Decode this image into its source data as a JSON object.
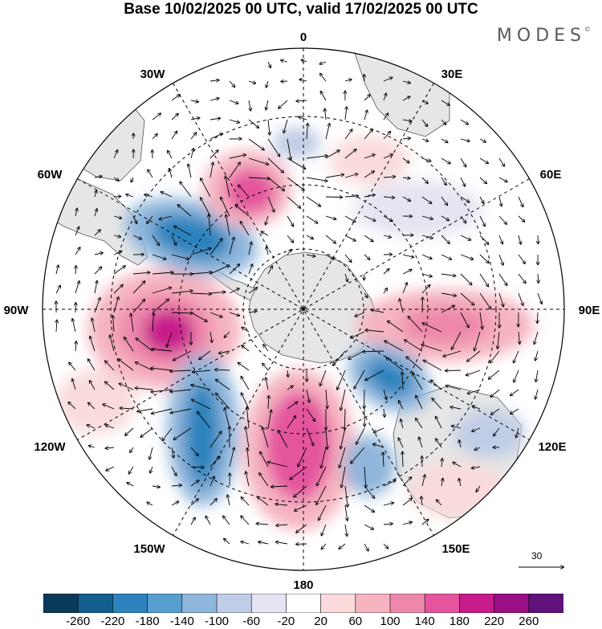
{
  "title": "Base 10/02/2025 00 UTC, valid 17/02/2025 00 UTC",
  "brand": "MODES",
  "brand_mark": "©",
  "longitude_labels": {
    "lon_0": "0",
    "lon_30e": "30E",
    "lon_60e": "60E",
    "lon_90e": "90E",
    "lon_120e": "120E",
    "lon_150e": "150E",
    "lon_180": "180",
    "lon_150w": "150W",
    "lon_120w": "120W",
    "lon_90w": "90W",
    "lon_60w": "60W",
    "lon_30w": "30W"
  },
  "reference_vector": {
    "label": "30"
  },
  "colorbar": {
    "tick_labels": [
      "-260",
      "-220",
      "-180",
      "-140",
      "-100",
      "-60",
      "-20",
      "20",
      "60",
      "100",
      "140",
      "180",
      "220",
      "260"
    ],
    "colors": [
      "#0b3a5a",
      "#135f8f",
      "#2c83bd",
      "#579fcf",
      "#8fb6dc",
      "#c0cde6",
      "#e4e4f2",
      "#ffffff",
      "#fadada",
      "#f5b4c0",
      "#ee88ab",
      "#e4559e",
      "#c81b8c",
      "#9a0f84",
      "#60117c"
    ]
  },
  "anomaly_centers": [
    {
      "lon": -100,
      "lat": -38,
      "value": 220
    },
    {
      "lon": -62,
      "lat": -35,
      "value": -180
    },
    {
      "lon": -18,
      "lat": -45,
      "value": 170
    },
    {
      "lon": -2,
      "lat": -40,
      "value": -80
    },
    {
      "lon": 88,
      "lat": -48,
      "value": 160
    },
    {
      "lon": 137,
      "lat": -58,
      "value": -180
    },
    {
      "lon": 172,
      "lat": -42,
      "value": 190
    },
    {
      "lon": -152,
      "lat": -32,
      "value": -200
    },
    {
      "lon": 158,
      "lat": -35,
      "value": -100
    },
    {
      "lon": -80,
      "lat": -12,
      "value": 60
    },
    {
      "lon": 55,
      "lat": -35,
      "value": -60
    },
    {
      "lon": 30,
      "lat": -28,
      "value": 50
    }
  ]
}
